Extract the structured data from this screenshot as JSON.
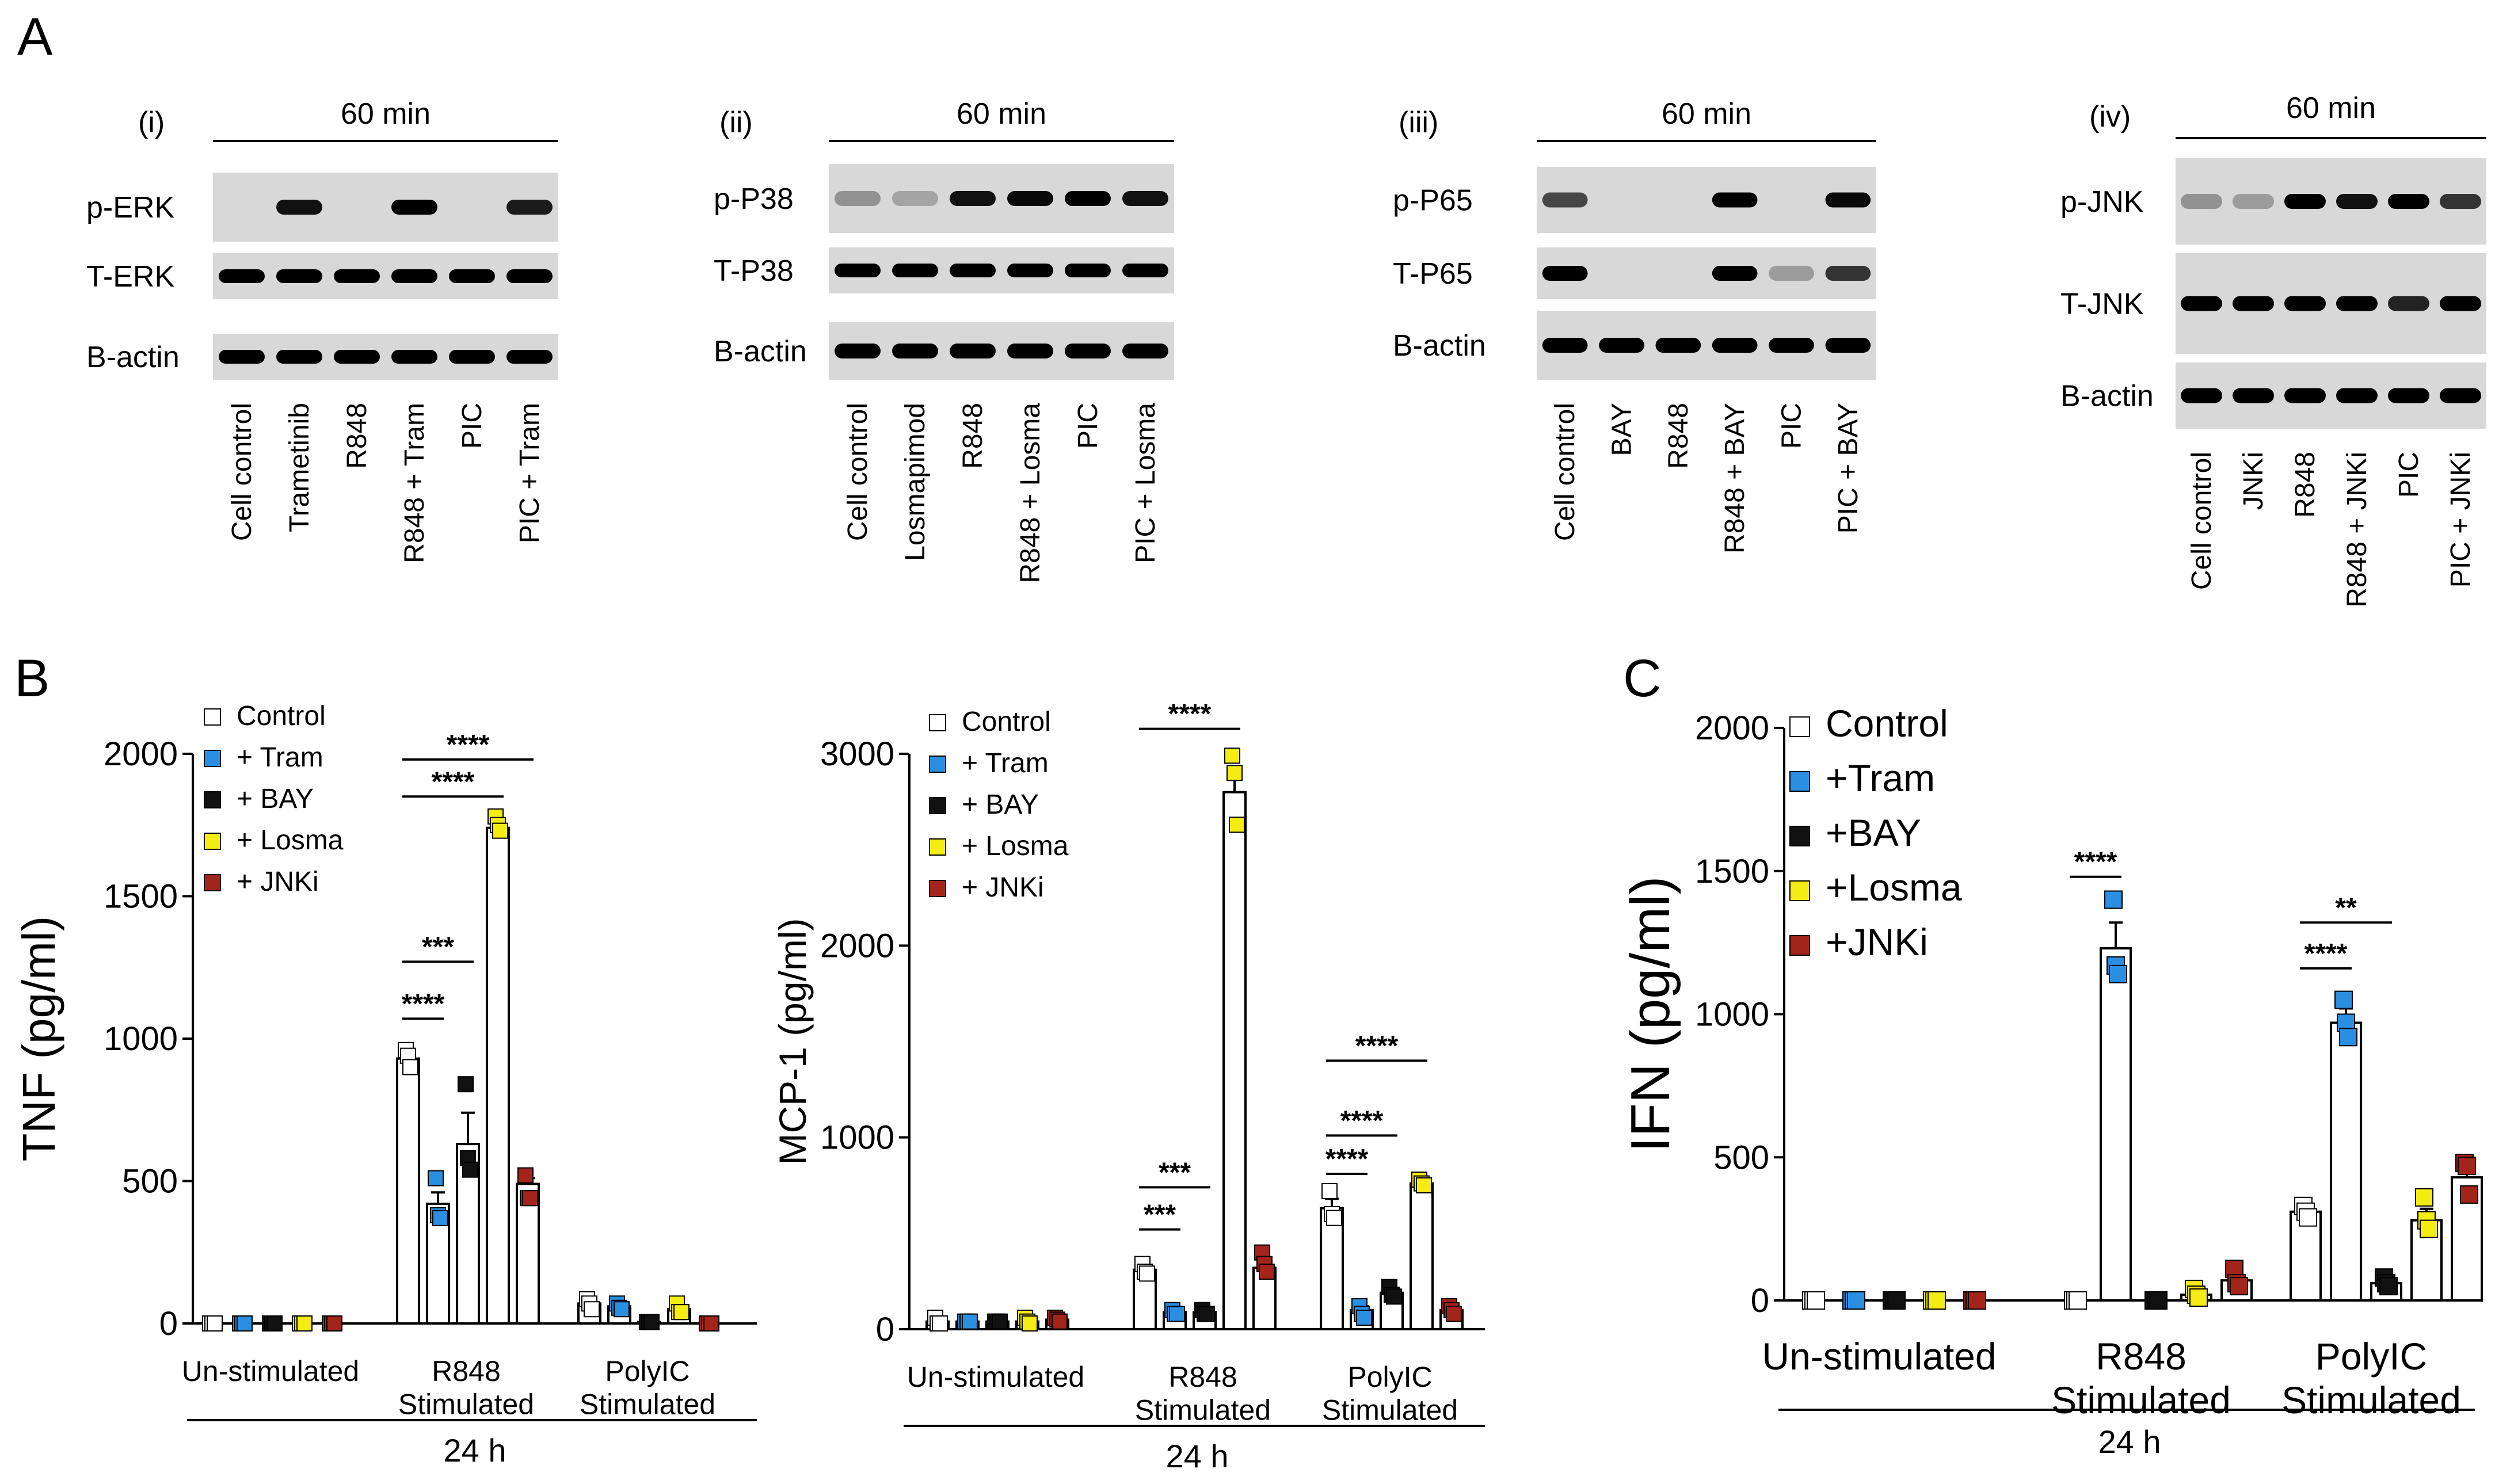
{
  "panel_labels": {
    "a": "A",
    "b": "B",
    "c": "C"
  },
  "blots": [
    {
      "roman": "(i)",
      "time": "60 min",
      "rows": [
        {
          "name": "p-ERK",
          "bands": [
            0,
            0.9,
            0,
            1,
            0,
            0.85
          ]
        },
        {
          "name": "T-ERK",
          "bands": [
            1,
            1,
            1,
            1,
            1,
            1
          ]
        },
        {
          "name": "B-actin",
          "bands": [
            1,
            1,
            1,
            1,
            1,
            1
          ]
        }
      ],
      "lanes": [
        "Cell control",
        "Trametinib",
        "R848",
        "R848 + Tram",
        "PIC",
        "PIC + Tram"
      ]
    },
    {
      "roman": "(ii)",
      "time": "60 min",
      "rows": [
        {
          "name": "p-P38",
          "bands": [
            0.15,
            0.05,
            0.9,
            0.95,
            1,
            0.9
          ]
        },
        {
          "name": "T-P38",
          "bands": [
            1,
            1,
            1,
            1,
            1,
            1
          ]
        },
        {
          "name": "B-actin",
          "bands": [
            1,
            1,
            1,
            1,
            1,
            1
          ]
        }
      ],
      "lanes": [
        "Cell control",
        "Losmapimod",
        "R848",
        "R848 + Losma",
        "PIC",
        "PIC + Losma"
      ]
    },
    {
      "roman": "(iii)",
      "time": "60 min",
      "rows": [
        {
          "name": "p-P65",
          "bands": [
            0.6,
            0,
            0,
            1,
            0,
            0.95
          ]
        },
        {
          "name": "T-P65",
          "bands": [
            1,
            0,
            0,
            1,
            0.1,
            0.7
          ]
        },
        {
          "name": "B-actin",
          "bands": [
            1,
            1,
            1,
            1,
            1,
            1
          ]
        }
      ],
      "lanes": [
        "Cell control",
        "BAY",
        "R848",
        "R848 + BAY",
        "PIC",
        "PIC + BAY"
      ]
    },
    {
      "roman": "(iv)",
      "time": "60 min",
      "rows": [
        {
          "name": "p-JNK",
          "bands": [
            0.15,
            0.1,
            1,
            0.9,
            1,
            0.7
          ]
        },
        {
          "name": "T-JNK",
          "bands": [
            1,
            1,
            1,
            1,
            0.8,
            1
          ]
        },
        {
          "name": "B-actin",
          "bands": [
            1,
            1,
            1,
            1,
            1,
            1
          ]
        }
      ],
      "lanes": [
        "Cell control",
        "JNKi",
        "R848",
        "R848 + JNKi",
        "PIC",
        "PIC + JNKi"
      ]
    }
  ],
  "colors": {
    "Control": "#ffffff",
    "Tram": "#2a8fe0",
    "BAY": "#111111",
    "Losma": "#f5ec14",
    "JNKi": "#a3241a"
  },
  "chart_data": [
    {
      "type": "bar",
      "ylabel": "TNF (pg/ml)",
      "ylim": [
        0,
        2000
      ],
      "yticks": [
        0,
        500,
        1000,
        1500,
        2000
      ],
      "groups": [
        "Un-stimulated",
        "R848\nStimulated",
        "PolyIC\nStimulated"
      ],
      "group_xlabel": "24 h",
      "legend": [
        {
          "key": "Control",
          "label": "Control"
        },
        {
          "key": "Tram",
          "label": "+ Tram"
        },
        {
          "key": "BAY",
          "label": "+ BAY"
        },
        {
          "key": "Losma",
          "label": "+ Losma"
        },
        {
          "key": "JNKi",
          "label": "+ JNKi"
        }
      ],
      "series": [
        {
          "key": "Control",
          "values": [
            0,
            930,
            70
          ],
          "points": [
            [
              0,
              0,
              0
            ],
            [
              960,
              940,
              900
            ],
            [
              85,
              70,
              50
            ]
          ],
          "err": [
            0,
            30,
            15
          ]
        },
        {
          "key": "Tram",
          "values": [
            0,
            420,
            60
          ],
          "points": [
            [
              0,
              0,
              0
            ],
            [
              510,
              380,
              370
            ],
            [
              70,
              55,
              50
            ]
          ],
          "err": [
            0,
            40,
            10
          ]
        },
        {
          "key": "BAY",
          "values": [
            0,
            630,
            5
          ],
          "points": [
            [
              0,
              0,
              0
            ],
            [
              840,
              580,
              540
            ],
            [
              5,
              5,
              5
            ]
          ],
          "err": [
            0,
            110,
            0
          ]
        },
        {
          "key": "Losma",
          "values": [
            0,
            1740,
            50
          ],
          "points": [
            [
              0,
              0,
              0
            ],
            [
              1780,
              1750,
              1730
            ],
            [
              70,
              40,
              40
            ]
          ],
          "err": [
            0,
            20,
            10
          ]
        },
        {
          "key": "JNKi",
          "values": [
            0,
            490,
            0
          ],
          "points": [
            [
              0,
              0,
              0
            ],
            [
              520,
              440,
              440
            ],
            [
              0,
              0,
              0
            ]
          ],
          "err": [
            0,
            20,
            0
          ]
        }
      ],
      "sig": [
        {
          "g": 1,
          "from": 0,
          "to": 1,
          "label": "****",
          "y": 1070
        },
        {
          "g": 1,
          "from": 0,
          "to": 2,
          "label": "***",
          "y": 1270
        },
        {
          "g": 1,
          "from": 0,
          "to": 3,
          "label": "****",
          "y": 1850
        },
        {
          "g": 1,
          "from": 0,
          "to": 4,
          "label": "****",
          "y": 1980
        }
      ]
    },
    {
      "type": "bar",
      "ylabel": "MCP-1 (pg/ml)",
      "ylim": [
        0,
        3000
      ],
      "yticks": [
        0,
        1000,
        2000,
        3000
      ],
      "groups": [
        "Un-stimulated",
        "R848\nStimulated",
        "PolyIC\nStimulated"
      ],
      "group_xlabel": "24 h",
      "legend": [
        {
          "key": "Control",
          "label": "Control"
        },
        {
          "key": "Tram",
          "label": "+ Tram"
        },
        {
          "key": "BAY",
          "label": "+ BAY"
        },
        {
          "key": "Losma",
          "label": "+ Losma"
        },
        {
          "key": "JNKi",
          "label": "+ JNKi"
        }
      ],
      "series": [
        {
          "key": "Control",
          "values": [
            40,
            310,
            630
          ],
          "points": [
            [
              60,
              30,
              30
            ],
            [
              340,
              300,
              290
            ],
            [
              720,
              600,
              580
            ]
          ],
          "err": [
            15,
            20,
            50
          ]
        },
        {
          "key": "Tram",
          "values": [
            40,
            90,
            100
          ],
          "points": [
            [
              40,
              40,
              40
            ],
            [
              100,
              80,
              80
            ],
            [
              120,
              80,
              60
            ]
          ],
          "err": [
            0,
            10,
            20
          ]
        },
        {
          "key": "BAY",
          "values": [
            40,
            90,
            190
          ],
          "points": [
            [
              40,
              40,
              40
            ],
            [
              100,
              80,
              80
            ],
            [
              220,
              180,
              170
            ]
          ],
          "err": [
            0,
            10,
            20
          ]
        },
        {
          "key": "Losma",
          "values": [
            40,
            2800,
            760
          ],
          "points": [
            [
              60,
              40,
              30
            ],
            [
              2990,
              2900,
              2630
            ],
            [
              780,
              760,
              750
            ]
          ],
          "err": [
            10,
            100,
            10
          ]
        },
        {
          "key": "JNKi",
          "values": [
            50,
            320,
            100
          ],
          "points": [
            [
              60,
              50,
              40
            ],
            [
              400,
              340,
              300
            ],
            [
              120,
              100,
              80
            ]
          ],
          "err": [
            10,
            40,
            20
          ]
        }
      ],
      "sig": [
        {
          "g": 1,
          "from": 0,
          "to": 1,
          "label": "***",
          "y": 520
        },
        {
          "g": 1,
          "from": 0,
          "to": 2,
          "label": "***",
          "y": 740
        },
        {
          "g": 1,
          "from": 0,
          "to": 3,
          "label": "****",
          "y": 3130
        },
        {
          "g": 2,
          "from": 0,
          "to": 1,
          "label": "****",
          "y": 810
        },
        {
          "g": 2,
          "from": 0,
          "to": 2,
          "label": "****",
          "y": 1010
        },
        {
          "g": 2,
          "from": 0,
          "to": 3,
          "label": "****",
          "y": 1400
        }
      ]
    },
    {
      "type": "bar",
      "ylabel": "IFN (pg/ml)",
      "ylim": [
        0,
        2000
      ],
      "yticks": [
        0,
        500,
        1000,
        1500,
        2000
      ],
      "groups": [
        "Un-stimulated",
        "R848\nStimulated",
        "PolyIC\nStimulated"
      ],
      "group_xlabel": "24 h",
      "legend": [
        {
          "key": "Control",
          "label": "Control"
        },
        {
          "key": "Tram",
          "label": "+Tram"
        },
        {
          "key": "BAY",
          "label": "+BAY"
        },
        {
          "key": "Losma",
          "label": "+Losma"
        },
        {
          "key": "JNKi",
          "label": "+JNKi"
        }
      ],
      "series": [
        {
          "key": "Control",
          "values": [
            0,
            0,
            310
          ],
          "points": [
            [
              0,
              0,
              0
            ],
            [
              0,
              0,
              0
            ],
            [
              330,
              310,
              290
            ]
          ],
          "err": [
            0,
            0,
            20
          ]
        },
        {
          "key": "Tram",
          "values": [
            0,
            1230,
            970
          ],
          "points": [
            [
              0,
              0,
              0
            ],
            [
              1400,
              1170,
              1140
            ],
            [
              1050,
              970,
              920
            ]
          ],
          "err": [
            0,
            90,
            50
          ]
        },
        {
          "key": "BAY",
          "values": [
            0,
            0,
            60
          ],
          "points": [
            [
              0,
              0,
              0
            ],
            [
              0,
              0,
              0
            ],
            [
              80,
              60,
              50
            ]
          ],
          "err": [
            0,
            0,
            10
          ]
        },
        {
          "key": "Losma",
          "values": [
            0,
            20,
            280
          ],
          "points": [
            [
              0,
              0,
              0
            ],
            [
              40,
              20,
              10
            ],
            [
              360,
              280,
              250
            ]
          ],
          "err": [
            0,
            10,
            40
          ]
        },
        {
          "key": "JNKi",
          "values": [
            0,
            70,
            430
          ],
          "points": [
            [
              0,
              0,
              0
            ],
            [
              110,
              60,
              50
            ],
            [
              480,
              470,
              370
            ]
          ],
          "err": [
            0,
            20,
            40
          ]
        }
      ],
      "sig": [
        {
          "g": 1,
          "from": 0,
          "to": 1,
          "label": "****",
          "y": 1480
        },
        {
          "g": 2,
          "from": 0,
          "to": 1,
          "label": "****",
          "y": 1160
        },
        {
          "g": 2,
          "from": 0,
          "to": 2,
          "label": "**",
          "y": 1320
        }
      ]
    }
  ]
}
